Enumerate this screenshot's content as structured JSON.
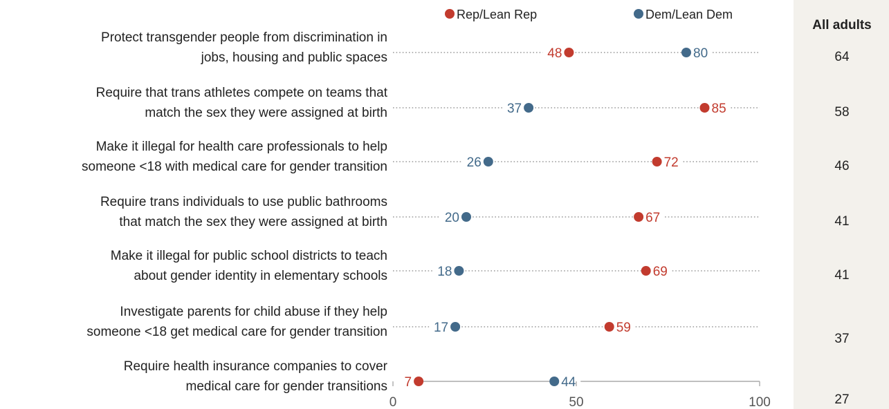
{
  "chart_data": {
    "type": "dot_plot",
    "title": "",
    "xlim": [
      0,
      100
    ],
    "x_ticks": [
      "0",
      "50",
      "100"
    ],
    "legend": [
      {
        "name": "Rep/Lean Rep",
        "color": "#c23b2e"
      },
      {
        "name": "Dem/Lean Dem",
        "color": "#436a8a"
      }
    ],
    "summary_column_header": "All adults",
    "categories": [
      [
        "Protect transgender people from discrimination in",
        "jobs, housing and public spaces"
      ],
      [
        "Require that trans athletes compete on teams that",
        "match the sex they were assigned at birth"
      ],
      [
        "Make it illegal for health care professionals to help",
        "someone <18 with medical care for gender transition"
      ],
      [
        "Require trans individuals to use public bathrooms",
        "that match the sex they were assigned at birth"
      ],
      [
        "Make it illegal for public school districts to teach",
        "about gender identity in elementary schools"
      ],
      [
        "Investigate parents for child abuse if they help",
        "someone <18 get medical care for gender transition"
      ],
      [
        "Require health insurance companies to cover",
        "medical care for gender transitions"
      ]
    ],
    "series": [
      {
        "name": "Rep/Lean Rep",
        "values": [
          48,
          85,
          72,
          67,
          69,
          59,
          7
        ]
      },
      {
        "name": "Dem/Lean Dem",
        "values": [
          80,
          37,
          26,
          20,
          18,
          17,
          44
        ]
      }
    ],
    "all_adults": [
      64,
      58,
      46,
      41,
      41,
      37,
      27
    ]
  },
  "colors": {
    "rep": "#c23b2e",
    "dem": "#436a8a",
    "text": "#222222",
    "axis": "#aaaaaa",
    "dotted": "#999999",
    "panel": "#f3f1ec"
  }
}
